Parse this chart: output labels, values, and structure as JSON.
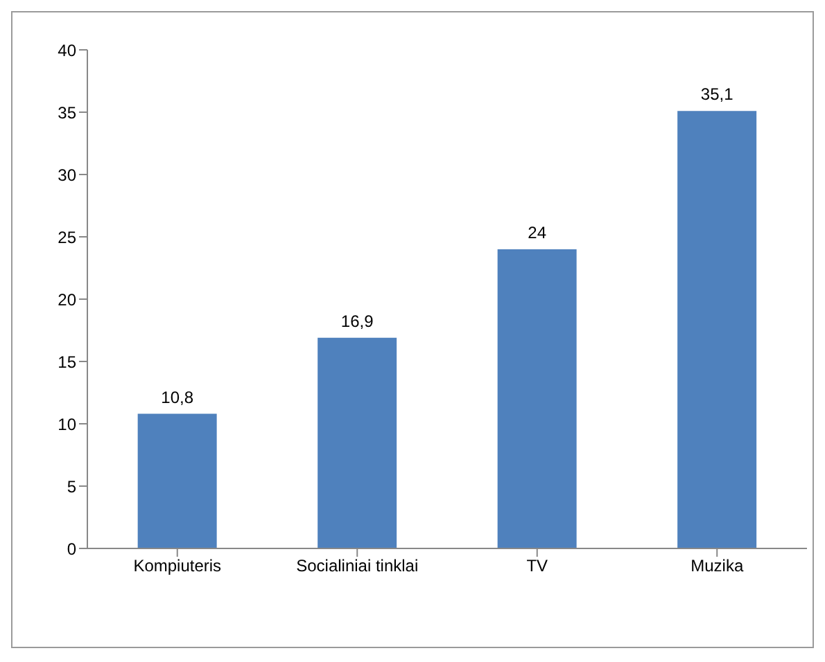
{
  "chart_data": {
    "type": "bar",
    "categories": [
      "Kompiuteris",
      "Socialiniai tinklai",
      "TV",
      "Muzika"
    ],
    "values": [
      10.8,
      16.9,
      24,
      35.1
    ],
    "color": "#4f81bd",
    "value_labels": [
      "10,8",
      "16,9",
      "24",
      "35,1"
    ],
    "ylim": [
      0,
      40
    ],
    "yticks": [
      0,
      5,
      10,
      15,
      20,
      25,
      30,
      35,
      40
    ],
    "grid": false,
    "legend": false
  }
}
